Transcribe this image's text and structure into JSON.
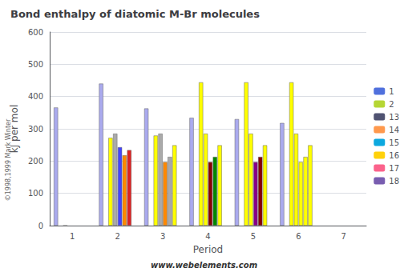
{
  "chart_data": {
    "type": "bar",
    "title": "Bond enthalpy of diatomic M-Br molecules",
    "xlabel": "Period",
    "ylabel": "kJ per mol",
    "annotations": [
      "www.webelements.com",
      "©1998,1999 Mark Winter"
    ],
    "categories": [
      "1",
      "2",
      "3",
      "4",
      "5",
      "6",
      "7"
    ],
    "series": [
      {
        "name": "1",
        "values": [
          366,
          440,
          363,
          334,
          330,
          318,
          0
        ],
        "colors": [
          "#aaaaee",
          "#aaaaee",
          "#aaaaee",
          "#aaaaee",
          "#aaaaee",
          "#aaaaee",
          null
        ]
      },
      {
        "name": "2",
        "values": [
          0,
          0,
          0,
          0,
          0,
          0,
          0
        ],
        "colors": [
          null,
          null,
          null,
          null,
          null,
          null,
          null
        ]
      },
      {
        "name": "13",
        "values": [
          0,
          272,
          279,
          444,
          444,
          444,
          0
        ],
        "colors": [
          "#ffccdd",
          "#ffff00",
          "#ffff00",
          "#ffff00",
          "#ffff00",
          "#ffff00",
          null
        ]
      },
      {
        "name": "14",
        "values": [
          0,
          285,
          285,
          285,
          285,
          285,
          0
        ],
        "colors": [
          null,
          "#aaaaaa",
          "#aaaaaa",
          "#ffff00",
          "#ffff00",
          "#ffff00",
          null
        ]
      },
      {
        "name": "15",
        "values": [
          0,
          243,
          197,
          197,
          197,
          197,
          0
        ],
        "colors": [
          null,
          "#4444ff",
          "#ff8800",
          "#880000",
          "#880088",
          "#ffff00",
          null
        ]
      },
      {
        "name": "16",
        "values": [
          0,
          218,
          213,
          213,
          213,
          213,
          0
        ],
        "colors": [
          null,
          "#ff8800",
          "#aaaaaa",
          "#008800",
          "#880000",
          "#ffff00",
          null
        ]
      },
      {
        "name": "17",
        "values": [
          0,
          234,
          249,
          249,
          249,
          249,
          0
        ],
        "colors": [
          null,
          "#dd2222",
          "#ffff00",
          "#ffff00",
          "#ffff00",
          "#ffff00",
          null
        ]
      },
      {
        "name": "18",
        "values": [
          0,
          0,
          0,
          0,
          0,
          0,
          0
        ],
        "colors": [
          null,
          null,
          null,
          null,
          null,
          null,
          null
        ]
      }
    ],
    "ylim": [
      0,
      600
    ],
    "yticks": [
      0,
      100,
      200,
      300,
      400,
      500,
      600
    ],
    "grid": true,
    "legend": "right"
  }
}
